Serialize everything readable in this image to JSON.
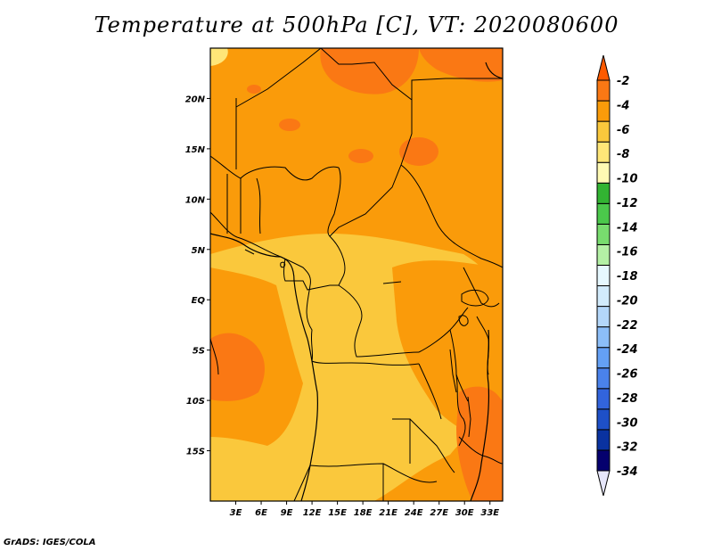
{
  "title": "Temperature at 500hPa [C], VT: 2020080600",
  "credit": "GrADS: IGES/COLA",
  "map": {
    "lon_range": [
      0,
      34.5
    ],
    "lat_range": [
      -20,
      25
    ],
    "lat_ticks": [
      {
        "value": 20,
        "label": "20N"
      },
      {
        "value": 15,
        "label": "15N"
      },
      {
        "value": 10,
        "label": "10N"
      },
      {
        "value": 5,
        "label": "5N"
      },
      {
        "value": 0,
        "label": "EQ"
      },
      {
        "value": -5,
        "label": "5S"
      },
      {
        "value": -10,
        "label": "10S"
      },
      {
        "value": -15,
        "label": "15S"
      }
    ],
    "lon_ticks": [
      {
        "value": 3,
        "label": "3E"
      },
      {
        "value": 6,
        "label": "6E"
      },
      {
        "value": 9,
        "label": "9E"
      },
      {
        "value": 12,
        "label": "12E"
      },
      {
        "value": 15,
        "label": "15E"
      },
      {
        "value": 18,
        "label": "18E"
      },
      {
        "value": 21,
        "label": "21E"
      },
      {
        "value": 24,
        "label": "24E"
      },
      {
        "value": 27,
        "label": "27E"
      },
      {
        "value": 30,
        "label": "30E"
      },
      {
        "value": 33,
        "label": "33E"
      }
    ]
  },
  "colorbar": {
    "colors": [
      "#e6e6fa",
      "#05006e",
      "#0a32a0",
      "#1e50c8",
      "#3264dc",
      "#4a82eb",
      "#64a0f5",
      "#8cbef8",
      "#b4d7fa",
      "#d2ebfc",
      "#e6f8ff",
      "#b4f0a5",
      "#78dc6e",
      "#4bc84b",
      "#32b432",
      "#fffab4",
      "#ffe678",
      "#fac83c",
      "#fa9b0a",
      "#fa7814",
      "#ff5a00"
    ],
    "labels": [
      "-2",
      "-4",
      "-6",
      "-8",
      "-10",
      "-12",
      "-14",
      "-16",
      "-18",
      "-20",
      "-22",
      "-24",
      "-26",
      "-28",
      "-30",
      "-32",
      "-34"
    ]
  },
  "colors": {
    "base": "#fa9b0a",
    "warm": "#fa7814",
    "cool": "#fac83c",
    "coolest": "#ffe678"
  }
}
